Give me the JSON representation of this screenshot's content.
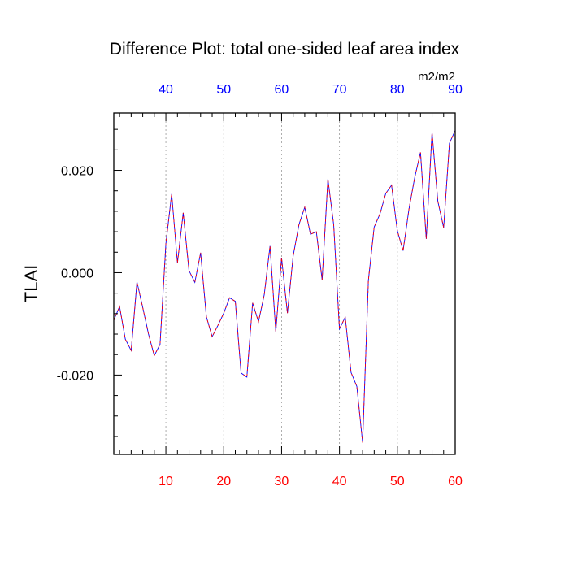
{
  "chart_data": {
    "type": "line",
    "title": "Difference Plot: total one-sided leaf area index",
    "units": "m2/m2",
    "ylabel": "TLAI",
    "xlim": [
      1,
      60
    ],
    "ylim": [
      -0.0355,
      0.0312
    ],
    "grid": "vertical dashed lines at bottom x-axis ticks",
    "bottom_axis": {
      "ticks": [
        10,
        20,
        30,
        40,
        50,
        60
      ],
      "tick_labels": [
        "10",
        "20",
        "30",
        "40",
        "50",
        "60"
      ],
      "minor_step": 2,
      "color": "#ff0000"
    },
    "top_axis": {
      "offset_from_bottom": 30,
      "ticks": [
        40,
        50,
        60,
        70,
        80,
        90
      ],
      "tick_labels": [
        "40",
        "50",
        "60",
        "70",
        "80",
        "90"
      ],
      "color": "#0000ff"
    },
    "left_axis": {
      "ticks": [
        -0.02,
        0.0,
        0.02
      ],
      "tick_labels": [
        "-0.020",
        "0.000",
        "0.020"
      ],
      "minor_step": 0.004
    },
    "series": [
      {
        "color": "#7a00aa",
        "style": "dashed",
        "x": [
          1,
          2,
          3,
          4,
          5,
          6,
          7,
          8,
          9,
          10,
          11,
          12,
          13,
          14,
          15,
          16,
          17,
          18,
          19,
          20,
          21,
          22,
          23,
          24,
          25,
          26,
          27,
          28,
          29,
          30,
          31,
          32,
          33,
          34,
          35,
          36,
          37,
          38,
          39,
          40,
          41,
          42,
          43,
          44,
          45,
          46,
          47,
          48,
          49,
          50,
          51,
          52,
          53,
          54,
          55,
          56,
          57,
          58,
          59,
          60
        ],
        "y": [
          -0.0093,
          -0.0066,
          -0.013,
          -0.0152,
          -0.0018,
          -0.0068,
          -0.012,
          -0.0162,
          -0.014,
          0.0057,
          0.0154,
          0.0019,
          0.0117,
          0.0004,
          -0.0019,
          0.0039,
          -0.0086,
          -0.0125,
          -0.0103,
          -0.0079,
          -0.0049,
          -0.0056,
          -0.0196,
          -0.0204,
          -0.0059,
          -0.0096,
          -0.0043,
          0.0052,
          -0.0115,
          0.0029,
          -0.0079,
          0.0033,
          0.0094,
          0.0128,
          0.0075,
          0.008,
          -0.0014,
          0.0183,
          0.0094,
          -0.011,
          -0.0087,
          -0.0195,
          -0.0222,
          -0.0332,
          -0.0015,
          0.0089,
          0.0115,
          0.0155,
          0.0171,
          0.0082,
          0.0043,
          0.0124,
          0.0186,
          0.0235,
          0.0066,
          0.0274,
          0.014,
          0.0088,
          0.0253,
          0.0278
        ]
      }
    ]
  }
}
